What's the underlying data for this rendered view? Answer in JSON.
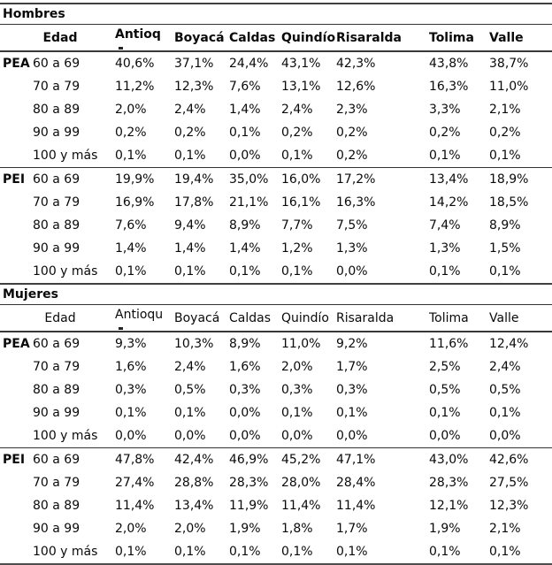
{
  "page": {
    "background": "#ffffff",
    "text_color": "#0a0a0a",
    "line_color": "#404040"
  },
  "sections": [
    {
      "title": "Hombres",
      "header_bold": true,
      "columns": [
        "Edad",
        "Antioq",
        "Boyacá",
        "Caldas",
        "Quindío",
        "Risaralda",
        "Tolima",
        "Valle"
      ],
      "groups": [
        {
          "label": "PEA",
          "rows": [
            {
              "edad": "60 a 69",
              "values": [
                "40,6%",
                "37,1%",
                "24,4%",
                "43,1%",
                "42,3%",
                "43,8%",
                "38,7%"
              ]
            },
            {
              "edad": "70 a 79",
              "values": [
                "11,2%",
                "12,3%",
                "7,6%",
                "13,1%",
                "12,6%",
                "16,3%",
                "11,0%"
              ]
            },
            {
              "edad": "80 a 89",
              "values": [
                "2,0%",
                "2,4%",
                "1,4%",
                "2,4%",
                "2,3%",
                "3,3%",
                "2,1%"
              ]
            },
            {
              "edad": "90 a 99",
              "values": [
                "0,2%",
                "0,2%",
                "0,1%",
                "0,2%",
                "0,2%",
                "0,2%",
                "0,2%"
              ]
            },
            {
              "edad": "100 y más",
              "values": [
                "0,1%",
                "0,1%",
                "0,0%",
                "0,1%",
                "0,2%",
                "0,1%",
                "0,1%"
              ]
            }
          ]
        },
        {
          "label": "PEI",
          "rows": [
            {
              "edad": "60 a 69",
              "values": [
                "19,9%",
                "19,4%",
                "35,0%",
                "16,0%",
                "17,2%",
                "13,4%",
                "18,9%"
              ]
            },
            {
              "edad": "70 a 79",
              "values": [
                "16,9%",
                "17,8%",
                "21,1%",
                "16,1%",
                "16,3%",
                "14,2%",
                "18,5%"
              ]
            },
            {
              "edad": "80 a 89",
              "values": [
                "7,6%",
                "9,4%",
                "8,9%",
                "7,7%",
                "7,5%",
                "7,4%",
                "8,9%"
              ]
            },
            {
              "edad": "90 a 99",
              "values": [
                "1,4%",
                "1,4%",
                "1,4%",
                "1,2%",
                "1,3%",
                "1,3%",
                "1,5%"
              ]
            },
            {
              "edad": "100 y más",
              "values": [
                "0,1%",
                "0,1%",
                "0,1%",
                "0,1%",
                "0,0%",
                "0,1%",
                "0,1%"
              ]
            }
          ]
        }
      ]
    },
    {
      "title": "Mujeres",
      "header_bold": false,
      "columns": [
        "Edad",
        "Antioqu",
        "Boyacá",
        "Caldas",
        "Quindío",
        "Risaralda",
        "Tolima",
        "Valle"
      ],
      "groups": [
        {
          "label": "PEA",
          "rows": [
            {
              "edad": "60 a 69",
              "values": [
                "9,3%",
                "10,3%",
                "8,9%",
                "11,0%",
                "9,2%",
                "11,6%",
                "12,4%"
              ]
            },
            {
              "edad": "70 a 79",
              "values": [
                "1,6%",
                "2,4%",
                "1,6%",
                "2,0%",
                "1,7%",
                "2,5%",
                "2,4%"
              ]
            },
            {
              "edad": "80 a 89",
              "values": [
                "0,3%",
                "0,5%",
                "0,3%",
                "0,3%",
                "0,3%",
                "0,5%",
                "0,5%"
              ]
            },
            {
              "edad": "90 a 99",
              "values": [
                "0,1%",
                "0,1%",
                "0,0%",
                "0,1%",
                "0,1%",
                "0,1%",
                "0,1%"
              ]
            },
            {
              "edad": "100 y más",
              "values": [
                "0,0%",
                "0,0%",
                "0,0%",
                "0,0%",
                "0,0%",
                "0,0%",
                "0,0%"
              ]
            }
          ]
        },
        {
          "label": "PEI",
          "rows": [
            {
              "edad": "60 a 69",
              "values": [
                "47,8%",
                "42,4%",
                "46,9%",
                "45,2%",
                "47,1%",
                "43,0%",
                "42,6%"
              ]
            },
            {
              "edad": "70 a 79",
              "values": [
                "27,4%",
                "28,8%",
                "28,3%",
                "28,0%",
                "28,4%",
                "28,3%",
                "27,5%"
              ]
            },
            {
              "edad": "80 a 89",
              "values": [
                "11,4%",
                "13,4%",
                "11,9%",
                "11,4%",
                "11,4%",
                "12,1%",
                "12,3%"
              ]
            },
            {
              "edad": "90 a 99",
              "values": [
                "2,0%",
                "2,0%",
                "1,9%",
                "1,8%",
                "1,7%",
                "1,9%",
                "2,1%"
              ]
            },
            {
              "edad": "100 y más",
              "values": [
                "0,1%",
                "0,1%",
                "0,1%",
                "0,1%",
                "0,1%",
                "0,1%",
                "0,1%"
              ]
            }
          ]
        }
      ]
    }
  ]
}
